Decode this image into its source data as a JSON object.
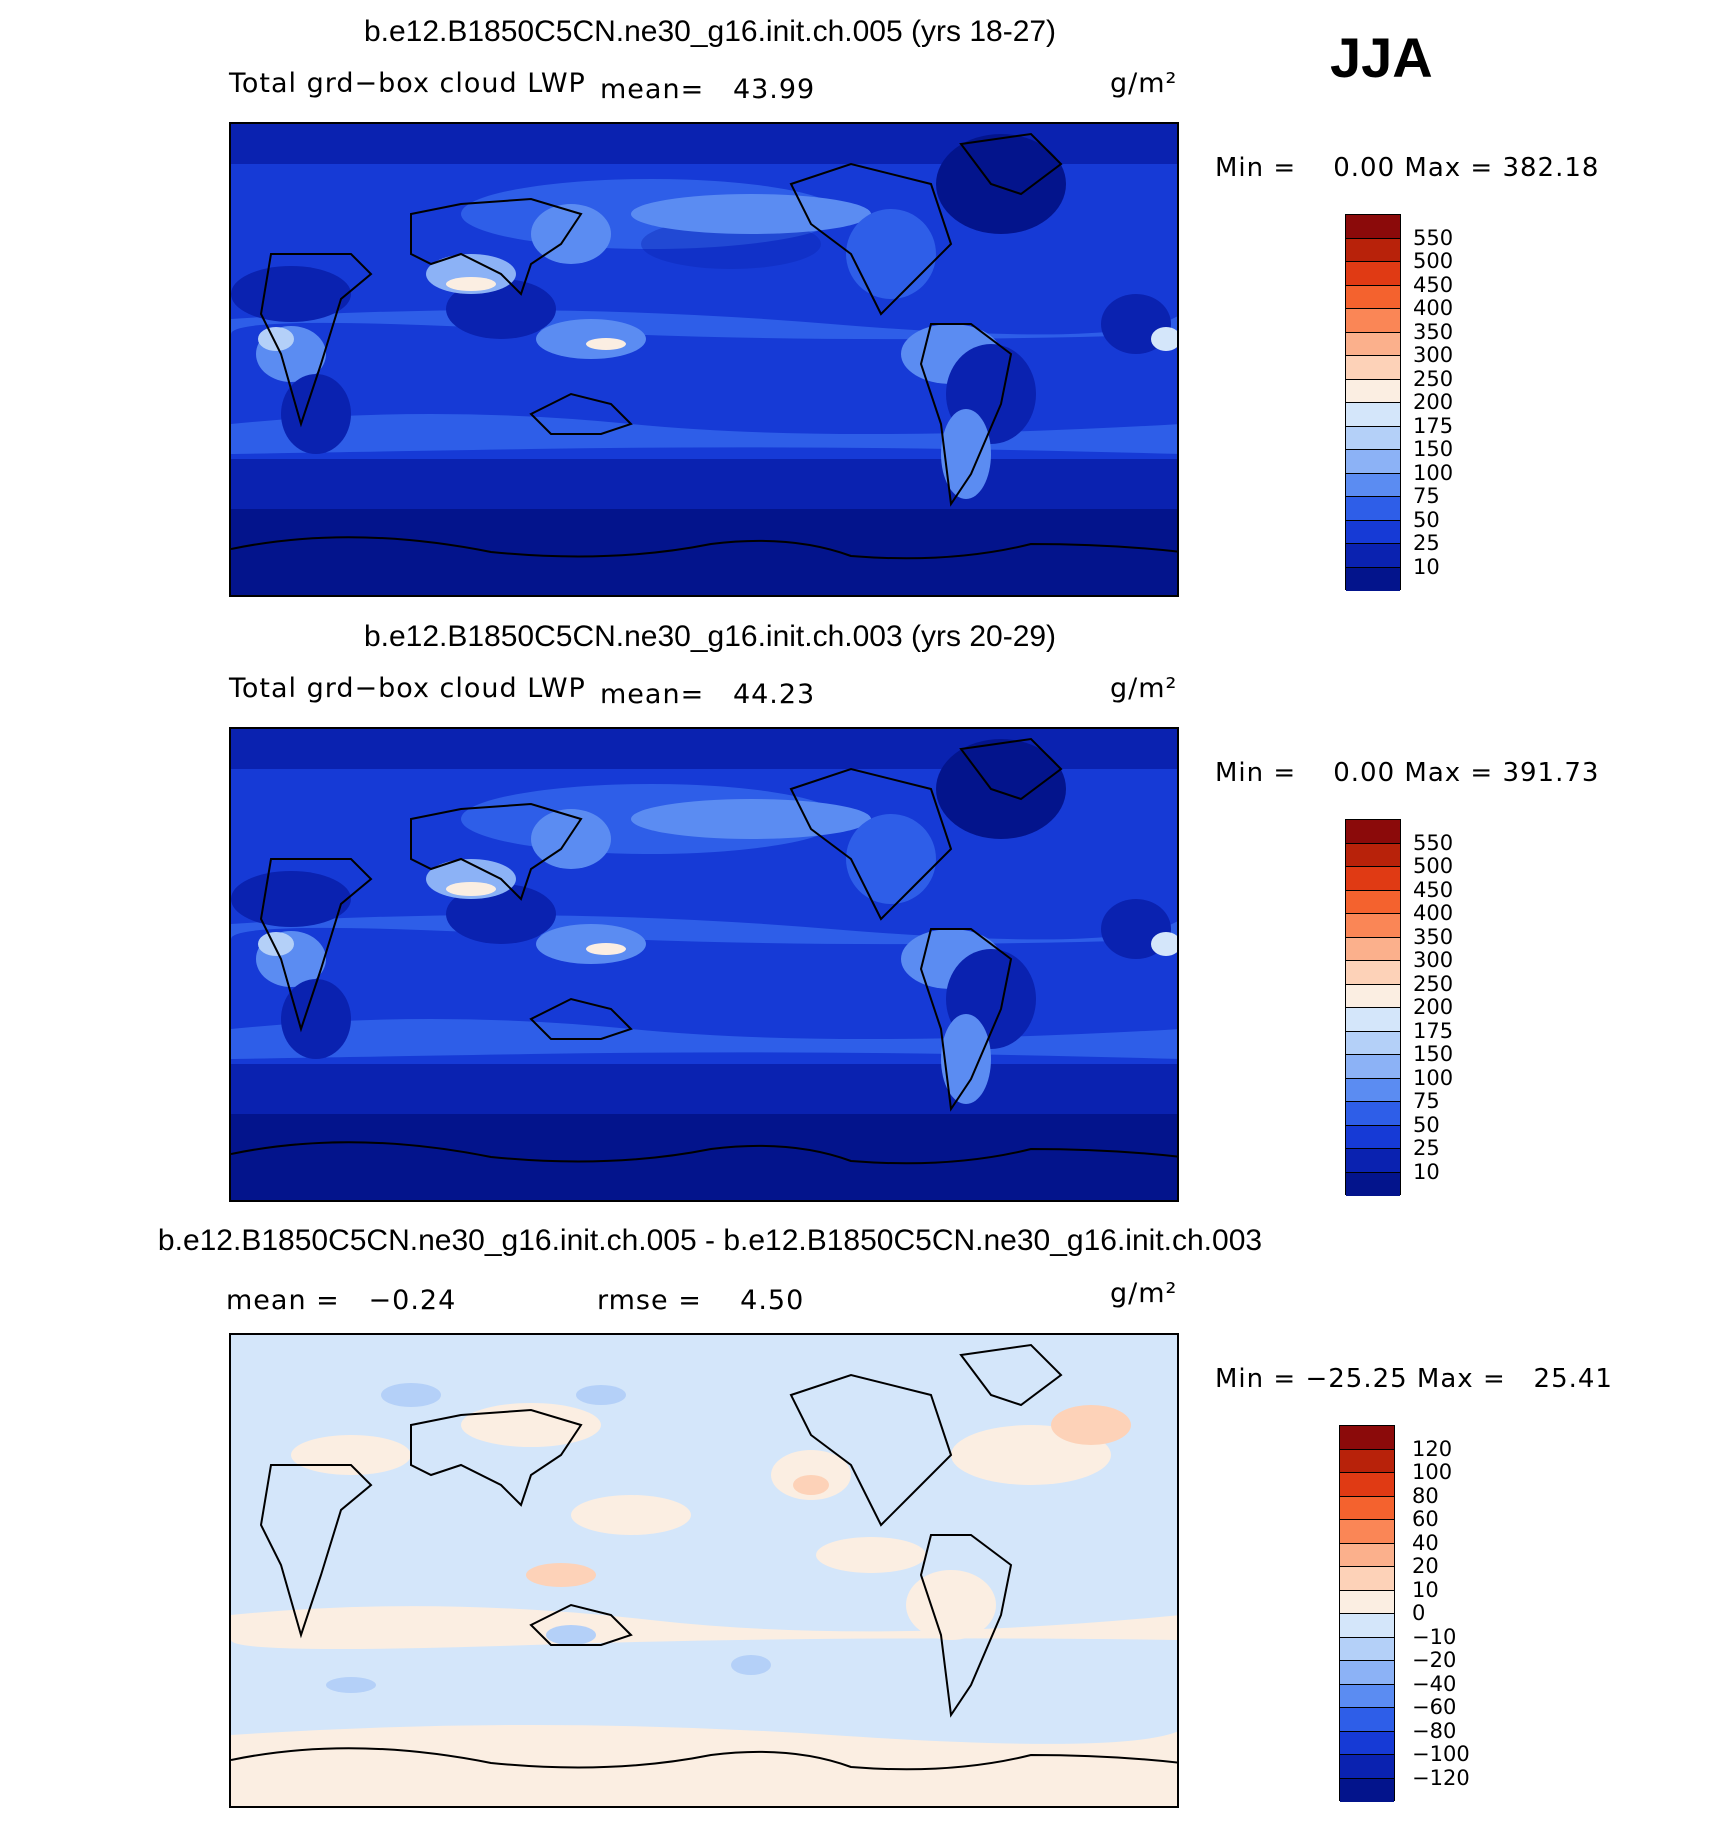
{
  "season": "JJA",
  "panels": [
    {
      "title": "b.e12.B1850C5CN.ne30_g16.init.ch.005 (yrs 18-27)",
      "variable": "Total grd−box cloud LWP",
      "stat1": "mean=   43.99",
      "stat2": "",
      "units": "g/m²",
      "minmax": "Min =    0.00 Max = 382.18",
      "colorbar": {
        "labels": [
          "550",
          "500",
          "450",
          "400",
          "350",
          "300",
          "250",
          "200",
          "175",
          "150",
          "100",
          "75",
          "50",
          "25",
          "10"
        ],
        "colors": [
          "#8b0a0a",
          "#b8220a",
          "#e03a14",
          "#f4622e",
          "#fa8656",
          "#fbb08c",
          "#fdd2b8",
          "#fbeee2",
          "#d4e6fa",
          "#b4d0f8",
          "#8cb2f6",
          "#5b8cf2",
          "#2e5ee8",
          "#163ad6",
          "#0a22b0",
          "#03148c"
        ]
      }
    },
    {
      "title": "b.e12.B1850C5CN.ne30_g16.init.ch.003 (yrs 20-29)",
      "variable": "Total grd−box cloud LWP",
      "stat1": "mean=   44.23",
      "stat2": "",
      "units": "g/m²",
      "minmax": "Min =    0.00 Max = 391.73",
      "colorbar": {
        "labels": [
          "550",
          "500",
          "450",
          "400",
          "350",
          "300",
          "250",
          "200",
          "175",
          "150",
          "100",
          "75",
          "50",
          "25",
          "10"
        ],
        "colors": [
          "#8b0a0a",
          "#b8220a",
          "#e03a14",
          "#f4622e",
          "#fa8656",
          "#fbb08c",
          "#fdd2b8",
          "#fbeee2",
          "#d4e6fa",
          "#b4d0f8",
          "#8cb2f6",
          "#5b8cf2",
          "#2e5ee8",
          "#163ad6",
          "#0a22b0",
          "#03148c"
        ]
      }
    },
    {
      "title": "b.e12.B1850C5CN.ne30_g16.init.ch.005 - b.e12.B1850C5CN.ne30_g16.init.ch.003",
      "variable": "",
      "stat1": "mean =   −0.24",
      "stat2": "rmse =    4.50",
      "units": "g/m²",
      "minmax": "Min = −25.25 Max =   25.41",
      "colorbar": {
        "labels": [
          "120",
          "100",
          "80",
          "60",
          "40",
          "20",
          "10",
          "0",
          "−10",
          "−20",
          "−40",
          "−60",
          "−80",
          "−100",
          "−120"
        ],
        "colors": [
          "#8b0a0a",
          "#b8220a",
          "#e03a14",
          "#f4622e",
          "#fa8656",
          "#fbb08c",
          "#fdd2b8",
          "#fbeee2",
          "#d4e6fa",
          "#b4d0f8",
          "#8cb2f6",
          "#5b8cf2",
          "#2e5ee8",
          "#163ad6",
          "#0a22b0",
          "#03148c"
        ]
      }
    }
  ]
}
